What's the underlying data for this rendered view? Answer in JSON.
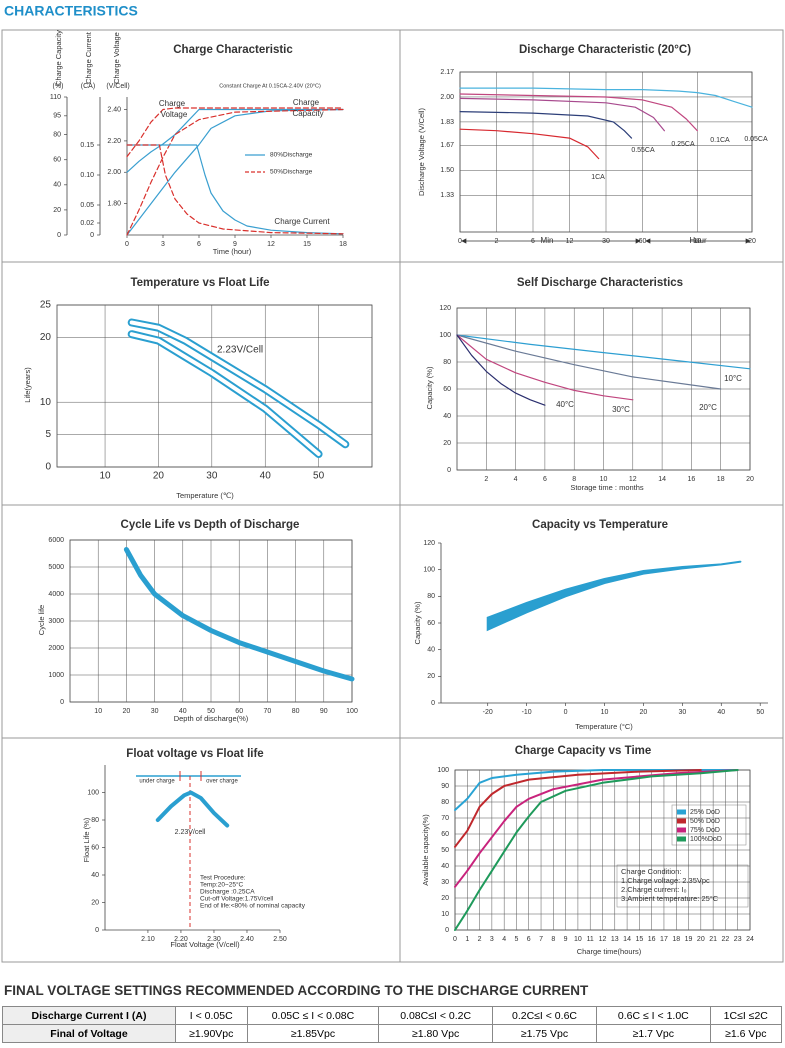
{
  "header": {
    "title": "CHARACTERISTICS"
  },
  "chart_data": [
    {
      "type": "line",
      "title": "Charge Characteristic",
      "frame": false,
      "grid": false,
      "xlabel": "Time (hour)",
      "ylabel": "Charge Capacity",
      "y2label": "Charge Current",
      "y3label": "Charge Voltage",
      "yunit": "(%)",
      "y2unit": "(CA)",
      "y3unit": "(V/Cell)",
      "xlim": [
        0,
        18
      ],
      "xticks": [
        0,
        3,
        6,
        9,
        12,
        15,
        18
      ],
      "ylim": [
        0,
        110
      ],
      "yticks": [
        0,
        20,
        40,
        60,
        80,
        95,
        110
      ],
      "y2lim": [
        0,
        0.23
      ],
      "y2ticks": [
        0,
        0.02,
        0.05,
        {
          "value": 0.1,
          "label": "0.10"
        },
        0.15
      ],
      "y3lim": [
        1.6,
        2.48
      ],
      "y3ticks": [
        {
          "value": 1.8,
          "label": "1.80"
        },
        {
          "value": 2.0,
          "label": "2.00"
        },
        {
          "value": 2.2,
          "label": "2.20"
        },
        {
          "value": 2.4,
          "label": "2.40"
        }
      ],
      "series": [
        {
          "color": "#3a9fd0",
          "axis": "y3",
          "x": [
            0,
            1,
            2,
            3,
            4,
            5,
            6,
            8,
            18
          ],
          "values": [
            2.0,
            2.07,
            2.13,
            2.18,
            2.24,
            2.32,
            2.4,
            2.4,
            2.4
          ]
        },
        {
          "color": "#d9302c",
          "dash": true,
          "axis": "y3",
          "x": [
            0,
            1,
            2,
            3,
            4,
            18
          ],
          "values": [
            2.1,
            2.2,
            2.32,
            2.4,
            2.41,
            2.41
          ]
        },
        {
          "color": "#3a9fd0",
          "axis": "y",
          "x": [
            0,
            2,
            4,
            6,
            7,
            9,
            12,
            18
          ],
          "values": [
            0,
            25,
            50,
            72,
            85,
            95,
            99,
            100
          ]
        },
        {
          "color": "#d9302c",
          "dash": true,
          "axis": "y",
          "x": [
            0,
            1,
            2,
            3,
            4,
            6,
            9,
            18
          ],
          "values": [
            0,
            20,
            42,
            62,
            80,
            92,
            98,
            100
          ]
        },
        {
          "color": "#3a9fd0",
          "axis": "y2",
          "x": [
            0,
            5.8,
            6.5,
            7,
            8,
            9,
            10,
            12,
            15,
            18
          ],
          "values": [
            0.15,
            0.15,
            0.1,
            0.07,
            0.04,
            0.025,
            0.015,
            0.008,
            0.004,
            0.002
          ]
        },
        {
          "color": "#d9302c",
          "dash": true,
          "axis": "y2",
          "x": [
            0,
            2.7,
            3.2,
            4,
            5,
            6,
            8,
            12,
            18
          ],
          "values": [
            0.15,
            0.15,
            0.1,
            0.06,
            0.035,
            0.02,
            0.01,
            0.004,
            0.002
          ]
        }
      ],
      "legend_entries": [
        {
          "label": "80%Discharge",
          "color": "#3a9fd0"
        },
        {
          "label": "50%Discharge",
          "color": "#d9302c",
          "dash": true
        }
      ],
      "annotations": [
        "Constant Charge At 0.15CA-2.40V (20°C)",
        "Charge",
        "Voltage",
        "Charge",
        "Capacity",
        "Charge Current"
      ]
    },
    {
      "type": "line",
      "title": "Discharge Characteristic (20°C)",
      "frame": true,
      "grid": true,
      "ylabel": "Discharge Voltage (V/Cell)",
      "xlim": [
        0,
        8
      ],
      "xticks": [
        0,
        {
          "value": 1,
          "label": "2"
        },
        {
          "value": 2,
          "label": "6"
        },
        {
          "value": 3,
          "label": "12"
        },
        {
          "value": 4,
          "label": "30"
        },
        {
          "value": 5,
          "label": "60"
        },
        {
          "value": 6.5,
          "label": "10"
        },
        {
          "value": 8,
          "label": "20"
        }
      ],
      "ylim": [
        1.08,
        2.17
      ],
      "yticks": [
        1.33,
        {
          "value": 1.5,
          "label": "1.50"
        },
        1.67,
        1.83,
        {
          "value": 2.0,
          "label": "2.00"
        },
        2.17
      ],
      "series": [
        {
          "name": "0.05CA",
          "color": "#4ab3de",
          "x": [
            0,
            2,
            4,
            5,
            6,
            6.5,
            7,
            7.5,
            8
          ],
          "values": [
            2.06,
            2.06,
            2.05,
            2.05,
            2.04,
            2.03,
            2.01,
            1.97,
            1.93
          ]
        },
        {
          "name": "0.1CA",
          "color": "#c0467f",
          "x": [
            0,
            2,
            4,
            5,
            5.8,
            6.2,
            6.5
          ],
          "values": [
            2.02,
            2.01,
            2.0,
            1.98,
            1.93,
            1.85,
            1.77
          ]
        },
        {
          "name": "0.25CA",
          "color": "#a84a8e",
          "x": [
            0,
            2,
            4,
            4.8,
            5.3,
            5.6
          ],
          "values": [
            1.99,
            1.98,
            1.96,
            1.93,
            1.86,
            1.77
          ]
        },
        {
          "name": "0.55CA",
          "color": "#2c3e78",
          "x": [
            0,
            2,
            3.5,
            4.2,
            4.5,
            4.7
          ],
          "values": [
            1.9,
            1.89,
            1.87,
            1.83,
            1.77,
            1.72
          ]
        },
        {
          "name": "1CA",
          "color": "#d7282f",
          "x": [
            0,
            1,
            2,
            3,
            3.5,
            3.8
          ],
          "values": [
            1.78,
            1.77,
            1.75,
            1.72,
            1.66,
            1.58
          ]
        }
      ],
      "annotations": [
        "Min",
        "Hour"
      ]
    },
    {
      "type": "line",
      "title": "Temperature vs Float Life",
      "frame": true,
      "grid": true,
      "xlabel": "Temperature (℃)",
      "ylabel": "Life(years)",
      "xlim": [
        1,
        60
      ],
      "xticks": [
        10,
        20,
        30,
        40,
        50
      ],
      "ylim": [
        0,
        25
      ],
      "yticks": [
        0,
        5,
        10,
        20,
        25
      ],
      "series": [
        {
          "color": "#2a9fd0",
          "band": true,
          "x": [
            15,
            20,
            25,
            30,
            40,
            50,
            55
          ],
          "values": [
            22.3,
            21.5,
            19.5,
            17,
            12,
            6.5,
            3.5
          ]
        },
        {
          "color": "#2a9fd0",
          "band": true,
          "x": [
            15,
            20,
            25,
            30,
            40,
            50
          ],
          "values": [
            20.5,
            19.5,
            17,
            14.5,
            9,
            2
          ]
        }
      ],
      "annotations": [
        "2.23V/Cell"
      ]
    },
    {
      "type": "line",
      "title": "Self Discharge Characteristics",
      "frame": true,
      "grid": true,
      "xlabel": "Storage time : months",
      "ylabel": "Capacity (%)",
      "xlim": [
        0,
        20
      ],
      "xticks": [
        2,
        4,
        6,
        8,
        10,
        12,
        14,
        16,
        18,
        20
      ],
      "ylim": [
        0,
        120
      ],
      "yticks": [
        0,
        20,
        40,
        60,
        80,
        100,
        120
      ],
      "series": [
        {
          "name": "10°C",
          "color": "#2d9fd2",
          "x": [
            0,
            5,
            10,
            15,
            20
          ],
          "values": [
            100,
            93,
            87,
            81,
            75
          ]
        },
        {
          "name": "20°C",
          "color": "#6a7a96",
          "x": [
            0,
            4,
            8,
            12,
            18
          ],
          "values": [
            100,
            88,
            78,
            69,
            60
          ]
        },
        {
          "name": "30°C",
          "color": "#c0457e",
          "x": [
            0,
            2,
            4,
            6,
            8,
            10,
            12
          ],
          "values": [
            100,
            82,
            72,
            65,
            59,
            55,
            52
          ]
        },
        {
          "name": "40°C",
          "color": "#2a2e6e",
          "x": [
            0,
            1,
            2,
            3,
            4,
            5,
            6
          ],
          "values": [
            100,
            85,
            73,
            64,
            57,
            52,
            48
          ]
        }
      ]
    },
    {
      "type": "line",
      "title": "Cycle Life vs Depth of Discharge",
      "frame": true,
      "grid": true,
      "xlabel": "Depth of discharge(%)",
      "ylabel": "Cycle life",
      "xlim": [
        0,
        100
      ],
      "xticks": [
        10,
        20,
        30,
        40,
        50,
        60,
        70,
        80,
        90,
        100
      ],
      "ylim": [
        0,
        6000
      ],
      "yticks": [
        0,
        1000,
        2000,
        3000,
        4000,
        5000,
        6000
      ],
      "series": [
        {
          "color": "#2a9fd0",
          "width": 5,
          "x": [
            20,
            25,
            30,
            40,
            50,
            60,
            70,
            80,
            90,
            100
          ],
          "values": [
            5650,
            4700,
            4000,
            3200,
            2650,
            2200,
            1850,
            1500,
            1150,
            850
          ]
        }
      ]
    },
    {
      "type": "line",
      "title": "Capacity vs Temperature",
      "frame": false,
      "grid": false,
      "fill_between": true,
      "xlabel": "Temperature (°C)",
      "ylabel": "Capacity (%)",
      "xlim": [
        -32,
        52
      ],
      "xticks": [
        -20,
        -10,
        0,
        10,
        20,
        30,
        40,
        50
      ],
      "ylim": [
        0,
        120
      ],
      "yticks": [
        0,
        20,
        40,
        60,
        80,
        100,
        120
      ],
      "series": [
        {
          "color": "#2a9fd0",
          "x": [
            -20,
            -10,
            0,
            10,
            20,
            30,
            40,
            45
          ],
          "values": [
            64,
            75,
            85,
            93,
            99,
            102,
            104,
            106
          ]
        },
        {
          "color": "#2a9fd0",
          "x": [
            -20,
            -10,
            0,
            10,
            20,
            30,
            40,
            45
          ],
          "values": [
            55,
            68,
            80,
            90,
            97,
            101,
            104,
            106
          ]
        }
      ]
    },
    {
      "type": "line",
      "title": "Float voltage vs Float life",
      "frame": false,
      "grid": false,
      "xlabel": "Float Voltage (V/cell)",
      "ylabel": "Float Life (%)",
      "xlim": [
        1.97,
        2.5
      ],
      "xticks": [
        {
          "value": 2.1,
          "label": "2.10"
        },
        {
          "value": 2.2,
          "label": "2.20"
        },
        {
          "value": 2.3,
          "label": "2.30"
        },
        {
          "value": 2.4,
          "label": "2.40"
        },
        {
          "value": 2.5,
          "label": "2.50"
        }
      ],
      "ylim": [
        0,
        120
      ],
      "yticks": [
        0,
        20,
        40,
        60,
        80,
        100
      ],
      "series": [
        {
          "color": "#2a9fd0",
          "width": 4,
          "x": [
            2.13,
            2.17,
            2.21,
            2.23,
            2.26,
            2.3,
            2.34
          ],
          "values": [
            80,
            90,
            98,
            100,
            96,
            85,
            76
          ]
        }
      ],
      "annotations": [
        "under charge",
        "over charge",
        "2.23V/cell",
        "Test Procedure:",
        "Temp:20~25°C",
        "Discharge :0.25CA",
        "Cut-off Voltage:1.75V/cell",
        "End of life:<80% of nominal capacity"
      ]
    },
    {
      "type": "line",
      "title": "Charge Capacity vs Time",
      "frame": true,
      "grid": true,
      "legend": "right",
      "xlabel": "Charge time(hours)",
      "ylabel": "Available capacity(%)",
      "xlim": [
        0,
        24
      ],
      "xticks": [
        0,
        1,
        2,
        3,
        4,
        5,
        6,
        7,
        8,
        9,
        10,
        11,
        12,
        13,
        14,
        15,
        16,
        17,
        18,
        19,
        20,
        21,
        22,
        23,
        24
      ],
      "ylim": [
        0,
        100
      ],
      "yticks": [
        0,
        10,
        20,
        30,
        40,
        50,
        60,
        70,
        80,
        90,
        100
      ],
      "series": [
        {
          "name": "25%  DoD",
          "color": "#29a3d4",
          "width": 2,
          "x": [
            0,
            1,
            2,
            3,
            5,
            8,
            12,
            23
          ],
          "values": [
            75,
            82,
            92,
            95,
            97,
            99,
            100,
            100
          ]
        },
        {
          "name": "50%  DoD",
          "color": "#c0282d",
          "width": 2,
          "x": [
            0,
            1,
            2,
            3,
            4,
            6,
            10,
            15,
            20
          ],
          "values": [
            52,
            62,
            77,
            85,
            90,
            94,
            97,
            99,
            100
          ]
        },
        {
          "name": "75%  DoD",
          "color": "#c8237c",
          "width": 2,
          "x": [
            0,
            1,
            2,
            3,
            4,
            5,
            6,
            8,
            12,
            18,
            23
          ],
          "values": [
            27,
            37,
            48,
            58,
            68,
            77,
            82,
            88,
            94,
            98,
            100
          ]
        },
        {
          "name": "100%DoD",
          "color": "#1f9a5b",
          "width": 2,
          "x": [
            0,
            1,
            2,
            3,
            4,
            5,
            6,
            7,
            9,
            12,
            16,
            20,
            23
          ],
          "values": [
            0,
            12,
            25,
            37,
            49,
            61,
            71,
            80,
            87,
            92,
            96,
            98,
            100
          ]
        }
      ],
      "annotations": [
        "Charge Condition:",
        "1.Charge voltage: 2.35Vpc",
        "2.Charge current: I₀",
        "3.Ambient temperature: 25°C"
      ]
    }
  ],
  "table": {
    "title": "FINAL VOLTAGE SETTINGS RECOMMENDED ACCORDING TO THE DISCHARGE CURRENT",
    "rows": [
      [
        "Discharge Current I (A)",
        "I < 0.05C",
        "0.05C ≤ I < 0.08C",
        "0.08C≤I < 0.2C",
        "0.2C≤I < 0.6C",
        "0.6C ≤ I < 1.0C",
        "1C≤I  ≤2C"
      ],
      [
        "Final of Voltage",
        "≥1.90Vpc",
        "≥1.85Vpc",
        "≥1.80 Vpc",
        "≥1.75 Vpc",
        "≥1.7 Vpc",
        "≥1.6 Vpc"
      ]
    ]
  }
}
